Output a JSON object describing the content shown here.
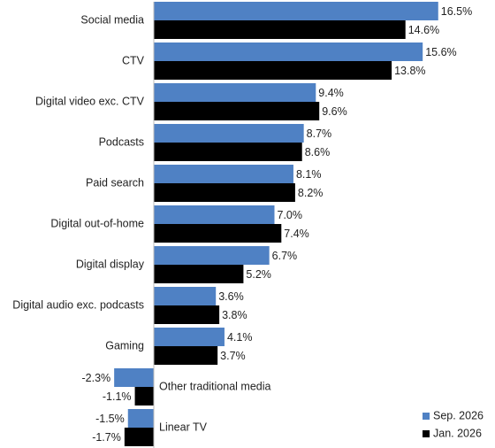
{
  "chart_data": {
    "type": "bar",
    "orientation": "horizontal",
    "categories": [
      "Social media",
      "CTV",
      "Digital video exc. CTV",
      "Podcasts",
      "Paid search",
      "Digital out-of-home",
      "Digital display",
      "Digital audio exc. podcasts",
      "Gaming",
      "Other traditional media",
      "Linear TV"
    ],
    "series": [
      {
        "name": "Sep. 2026",
        "color": "#4f81c4",
        "values": [
          16.5,
          15.6,
          9.4,
          8.7,
          8.1,
          7.0,
          6.7,
          3.6,
          4.1,
          -2.3,
          -1.5
        ],
        "value_labels": [
          "16.5%",
          "15.6%",
          "9.4%",
          "8.7%",
          "8.1%",
          "7.0%",
          "6.7%",
          "3.6%",
          "4.1%",
          "-2.3%",
          "-1.5%"
        ]
      },
      {
        "name": "Jan. 2026",
        "color": "#000000",
        "values": [
          14.6,
          13.8,
          9.6,
          8.6,
          8.2,
          7.4,
          5.2,
          3.8,
          3.7,
          -1.1,
          -1.7
        ],
        "value_labels": [
          "14.6%",
          "13.8%",
          "9.6%",
          "8.6%",
          "8.2%",
          "7.4%",
          "5.2%",
          "3.8%",
          "3.7%",
          "-1.1%",
          "-1.7%"
        ]
      }
    ],
    "legend": "bottom-right"
  }
}
